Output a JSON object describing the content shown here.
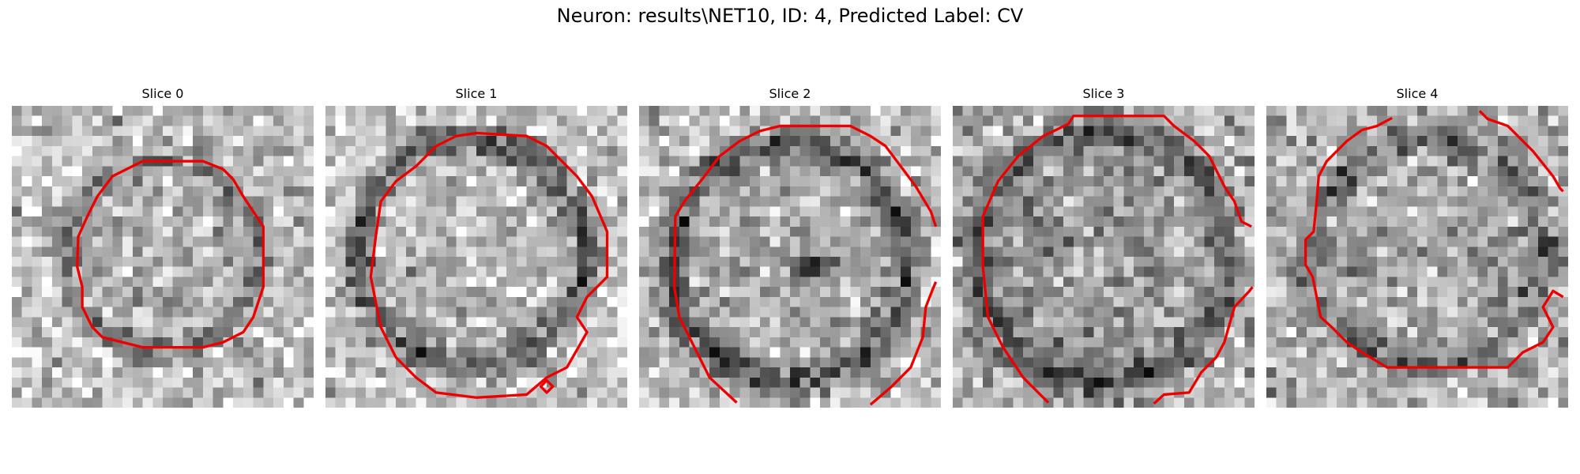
{
  "figure": {
    "title": "Neuron: results\\NET10, ID: 4, Predicted Label: CV",
    "contour_color": "#ee0000"
  },
  "slices": [
    {
      "title": "Slice 0",
      "icon": "cell-ring-membrane"
    },
    {
      "title": "Slice 1",
      "icon": "cell-ring-membrane"
    },
    {
      "title": "Slice 2",
      "icon": "cell-ring-membrane"
    },
    {
      "title": "Slice 3",
      "icon": "cell-ring-membrane"
    },
    {
      "title": "Slice 4",
      "icon": "cell-ring-membrane"
    }
  ]
}
